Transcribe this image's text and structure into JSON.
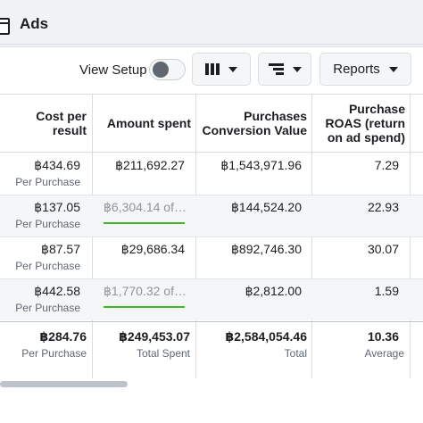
{
  "header": {
    "title": "Ads"
  },
  "toolbar": {
    "view_setup_label": "View Setup",
    "view_setup_on": false,
    "columns_icon": "columns-icon",
    "breakdown_icon": "breakdown-icon",
    "reports_label": "Reports"
  },
  "table": {
    "columns": [
      {
        "label": "Cost per result"
      },
      {
        "label": "Amount spent"
      },
      {
        "label": "Purchases Conversion Value"
      },
      {
        "label": "Purchase ROAS (return on ad spend)"
      }
    ],
    "rows": [
      {
        "cost": "฿434.69",
        "cost_sub": "Per Purchase",
        "spent": "฿211,692.27",
        "spent_muted": false,
        "spent_progress": null,
        "conv": "฿1,543,971.96",
        "roas": "7.29"
      },
      {
        "cost": "฿137.05",
        "cost_sub": "Per Purchase",
        "spent": "฿6,304.14 of…",
        "spent_muted": true,
        "spent_progress": 1.0,
        "conv": "฿144,524.20",
        "roas": "22.93"
      },
      {
        "cost": "฿87.57",
        "cost_sub": "Per Purchase",
        "spent": "฿29,686.34",
        "spent_muted": false,
        "spent_progress": null,
        "conv": "฿892,746.30",
        "roas": "30.07"
      },
      {
        "cost": "฿442.58",
        "cost_sub": "Per Purchase",
        "spent": "฿1,770.32 of…",
        "spent_muted": true,
        "spent_progress": 1.0,
        "conv": "฿2,812.00",
        "roas": "1.59"
      }
    ],
    "totals": {
      "cost": "฿284.76",
      "cost_sub": "Per Purchase",
      "spent": "฿249,453.07",
      "spent_sub": "Total Spent",
      "conv": "฿2,584,054.46",
      "conv_sub": "Total",
      "roas": "10.36",
      "roas_sub": "Average"
    }
  },
  "colors": {
    "progress": "#42b72a",
    "muted_text": "#8d949e"
  }
}
